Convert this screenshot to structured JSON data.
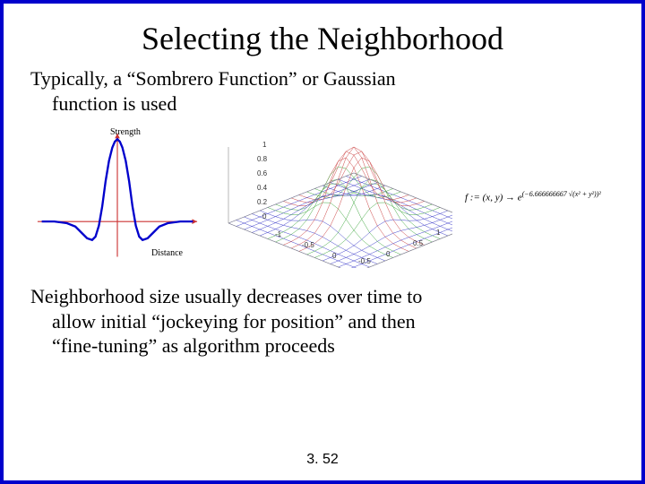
{
  "title": "Selecting the Neighborhood",
  "para1_line1": "Typically, a “Sombrero Function” or Gaussian",
  "para1_line2": "function is used",
  "para2_line1": "Neighborhood size usually decreases over time to",
  "para2_line2": "allow initial “jockeying for position” and then",
  "para2_line3": "“fine-tuning” as algorithm proceeds",
  "page_number": "3. 52",
  "sombrero": {
    "label_y": "Strength",
    "label_x": "Distance",
    "axis_color": "#cc3333",
    "curve_color": "#0000cc",
    "curve_width": 2.5,
    "arrow_size": 6,
    "points": [
      [
        -90,
        0
      ],
      [
        -75,
        0
      ],
      [
        -60,
        -2
      ],
      [
        -50,
        -6
      ],
      [
        -42,
        -14
      ],
      [
        -36,
        -20
      ],
      [
        -30,
        -22
      ],
      [
        -26,
        -18
      ],
      [
        -22,
        -5
      ],
      [
        -18,
        18
      ],
      [
        -14,
        48
      ],
      [
        -10,
        72
      ],
      [
        -6,
        88
      ],
      [
        -3,
        95
      ],
      [
        0,
        98
      ],
      [
        3,
        95
      ],
      [
        6,
        88
      ],
      [
        10,
        72
      ],
      [
        14,
        48
      ],
      [
        18,
        18
      ],
      [
        22,
        -5
      ],
      [
        26,
        -18
      ],
      [
        30,
        -22
      ],
      [
        36,
        -20
      ],
      [
        42,
        -14
      ],
      [
        50,
        -6
      ],
      [
        60,
        -2
      ],
      [
        75,
        0
      ],
      [
        90,
        0
      ]
    ]
  },
  "surface": {
    "z_ticks": [
      "1",
      "0.8",
      "0.6",
      "0.4",
      "0.2",
      "0"
    ],
    "x_ticks": [
      "-1",
      "-0.5",
      "0",
      "0.5",
      "1"
    ],
    "y_ticks": [
      "-1",
      "-0.5",
      "0",
      "0.5",
      "1"
    ],
    "mesh_color": "#666",
    "top_color": "#cc4444",
    "mid_color": "#44aa44",
    "base_color": "#4444cc",
    "grid_n": 16
  },
  "formula": {
    "lhs": "f := (x, y) → e",
    "exp_part": "(−6.666666667 √(x² + y²))²"
  }
}
